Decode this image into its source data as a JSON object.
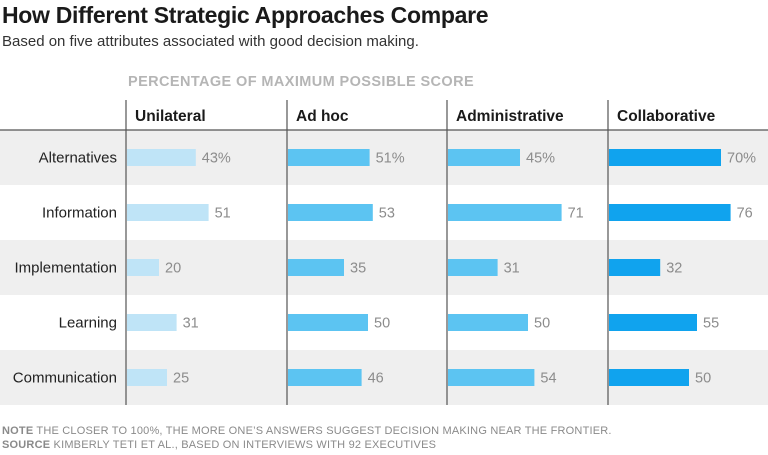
{
  "header": {
    "title": "How Different Strategic Approaches Compare",
    "subtitle": "Based on five attributes associated with good decision making."
  },
  "axis_caption": "PERCENTAGE OF MAXIMUM POSSIBLE SCORE",
  "footer": {
    "note_label": "NOTE",
    "note_text": "THE CLOSER TO 100%, THE MORE ONE’S ANSWERS SUGGEST DECISION MAKING NEAR THE FRONTIER.",
    "source_label": "SOURCE",
    "source_text": "KIMBERLY TETI ET AL., BASED ON INTERVIEWS WITH 92 EXECUTIVES"
  },
  "colors": {
    "Unilateral": "#bfe4f7",
    "Ad hoc": "#5cc4f2",
    "Administrative": "#5cc4f2",
    "Collaborative": "#10a3ee",
    "stripe": "#efefef",
    "value_text": "#8c8c8c"
  },
  "chart_data": {
    "type": "bar",
    "orientation": "horizontal",
    "facets": [
      "Unilateral",
      "Ad hoc",
      "Administrative",
      "Collaborative"
    ],
    "categories": [
      "Alternatives",
      "Information",
      "Implementation",
      "Learning",
      "Communication"
    ],
    "series": [
      {
        "name": "Unilateral",
        "values": [
          43,
          51,
          20,
          31,
          25
        ],
        "labels": [
          "43%",
          "51",
          "20",
          "31",
          "25"
        ]
      },
      {
        "name": "Ad hoc",
        "values": [
          51,
          53,
          35,
          50,
          46
        ],
        "labels": [
          "51%",
          "53",
          "35",
          "50",
          "46"
        ]
      },
      {
        "name": "Administrative",
        "values": [
          45,
          71,
          31,
          50,
          54
        ],
        "labels": [
          "45%",
          "71",
          "31",
          "50",
          "54"
        ]
      },
      {
        "name": "Collaborative",
        "values": [
          70,
          76,
          32,
          55,
          50
        ],
        "labels": [
          "70%",
          "76",
          "32",
          "55",
          "50"
        ]
      }
    ],
    "xlim": [
      0,
      100
    ],
    "xlabel": "PERCENTAGE OF MAXIMUM POSSIBLE SCORE",
    "grid": false
  }
}
